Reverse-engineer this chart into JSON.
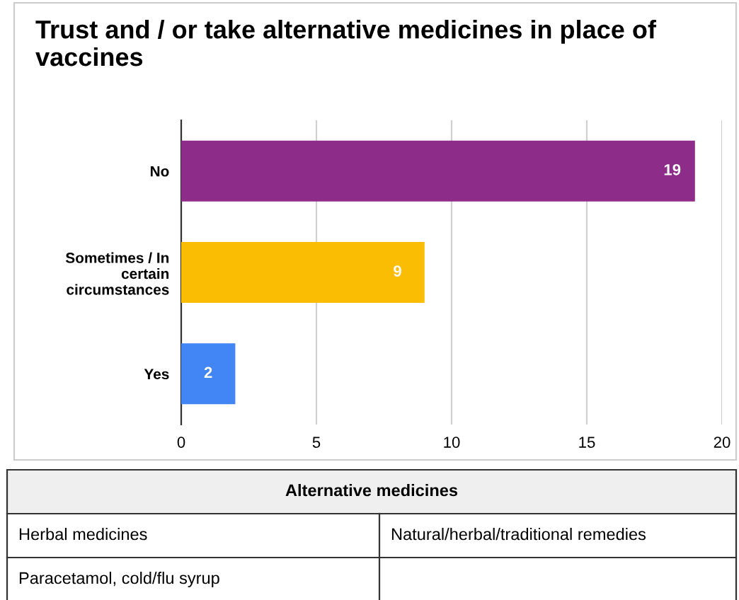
{
  "chart_data": {
    "type": "bar",
    "orientation": "horizontal",
    "title": "Trust and / or take alternative medicines in place of vaccines",
    "categories": [
      "No",
      "Sometimes / In certain circumstances",
      "Yes"
    ],
    "values": [
      19,
      9,
      2
    ],
    "colors": [
      "#8e2c8a",
      "#fbbc04",
      "#4285f4"
    ],
    "xlim": [
      0,
      20
    ],
    "xticks": [
      0,
      5,
      10,
      15,
      20
    ],
    "grid": "x",
    "data_labels": true,
    "annotations": [
      "Alternative medicines",
      "Herbal medicines",
      "Natural/herbal/traditional remedies",
      "Paracetamol, cold/flu syrup"
    ]
  }
}
